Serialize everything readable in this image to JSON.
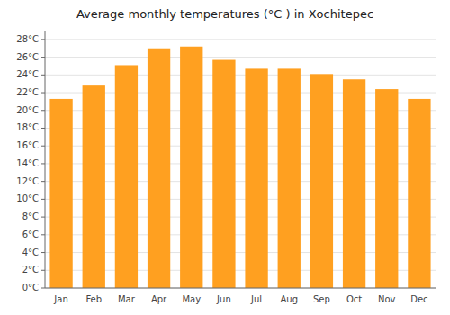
{
  "chart_data": {
    "type": "bar",
    "title": "Average monthly temperatures (°C ) in Xochitepec",
    "categories": [
      "Jan",
      "Feb",
      "Mar",
      "Apr",
      "May",
      "Jun",
      "Jul",
      "Aug",
      "Sep",
      "Oct",
      "Nov",
      "Dec"
    ],
    "values": [
      21.3,
      22.8,
      25.1,
      27.0,
      27.2,
      25.7,
      24.7,
      24.7,
      24.1,
      23.5,
      22.4,
      21.3
    ],
    "color": "#FFA020",
    "ylim": [
      0,
      29
    ],
    "yticks": [
      {
        "value": 0,
        "label": "0°C"
      },
      {
        "value": 2,
        "label": "2°C"
      },
      {
        "value": 4,
        "label": "4°C"
      },
      {
        "value": 6,
        "label": "6°C"
      },
      {
        "value": 8,
        "label": "8°C"
      },
      {
        "value": 10,
        "label": "10°C"
      },
      {
        "value": 12,
        "label": "12°C"
      },
      {
        "value": 14,
        "label": "14°C"
      },
      {
        "value": 16,
        "label": "16°C"
      },
      {
        "value": 18,
        "label": "18°C"
      },
      {
        "value": 20,
        "label": "20°C"
      },
      {
        "value": 22,
        "label": "22°C"
      },
      {
        "value": 24,
        "label": "24°C"
      },
      {
        "value": 26,
        "label": "26°C"
      },
      {
        "value": 28,
        "label": "28°C"
      }
    ],
    "grid": true
  }
}
